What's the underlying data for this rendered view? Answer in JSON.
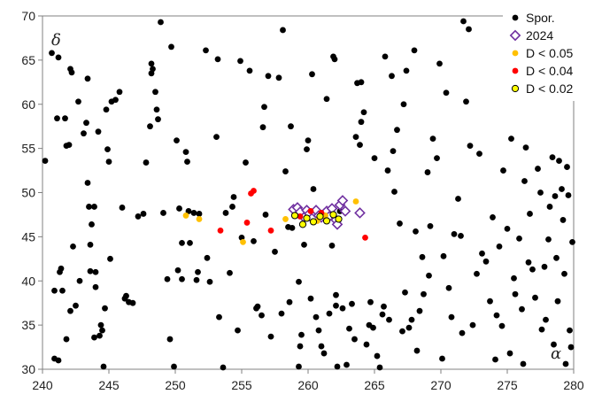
{
  "chart_data": {
    "type": "scatter",
    "xlabel": "α",
    "ylabel": "δ",
    "xlim": [
      240,
      280
    ],
    "ylim": [
      30,
      70
    ],
    "xticks": [
      240,
      245,
      250,
      255,
      260,
      265,
      270,
      275,
      280
    ],
    "yticks": [
      30,
      35,
      40,
      45,
      50,
      55,
      60,
      65,
      70
    ],
    "grid": false,
    "legend_position": "top-right",
    "series": [
      {
        "name": "Spor.",
        "color": "#000000",
        "marker": "filled-circle",
        "points": [
          [
            240.2,
            53.6
          ],
          [
            240.7,
            65.8
          ],
          [
            240.9,
            31.2
          ],
          [
            240.9,
            38.9
          ],
          [
            241.1,
            58.4
          ],
          [
            241.2,
            65.3
          ],
          [
            241.2,
            31.0
          ],
          [
            241.3,
            41.0
          ],
          [
            241.4,
            41.4
          ],
          [
            241.5,
            38.9
          ],
          [
            241.7,
            58.4
          ],
          [
            241.8,
            33.4
          ],
          [
            241.8,
            55.3
          ],
          [
            242.0,
            55.4
          ],
          [
            242.1,
            36.6
          ],
          [
            242.1,
            64.0
          ],
          [
            242.2,
            63.6
          ],
          [
            242.3,
            43.9
          ],
          [
            242.5,
            37.2
          ],
          [
            242.7,
            60.3
          ],
          [
            242.8,
            40.0
          ],
          [
            243.1,
            56.7
          ],
          [
            243.3,
            57.9
          ],
          [
            243.4,
            51.1
          ],
          [
            243.4,
            62.9
          ],
          [
            243.5,
            48.4
          ],
          [
            243.6,
            44.1
          ],
          [
            243.6,
            41.1
          ],
          [
            243.7,
            46.4
          ],
          [
            243.9,
            48.4
          ],
          [
            243.9,
            33.6
          ],
          [
            244.0,
            41.0
          ],
          [
            244.0,
            39.3
          ],
          [
            244.2,
            56.9
          ],
          [
            244.3,
            33.8
          ],
          [
            244.4,
            35.0
          ],
          [
            244.5,
            34.4
          ],
          [
            244.6,
            30.3
          ],
          [
            244.7,
            36.9
          ],
          [
            244.8,
            59.4
          ],
          [
            244.9,
            54.9
          ],
          [
            245.0,
            53.5
          ],
          [
            245.1,
            42.5
          ],
          [
            245.2,
            60.3
          ],
          [
            245.5,
            60.5
          ],
          [
            245.8,
            61.4
          ],
          [
            246.0,
            48.3
          ],
          [
            246.2,
            38.0
          ],
          [
            246.3,
            38.3
          ],
          [
            246.5,
            37.6
          ],
          [
            246.8,
            37.5
          ],
          [
            247.2,
            47.3
          ],
          [
            247.6,
            47.6
          ],
          [
            247.8,
            53.4
          ],
          [
            248.1,
            57.5
          ],
          [
            248.2,
            64.6
          ],
          [
            248.2,
            63.5
          ],
          [
            248.3,
            64.0
          ],
          [
            248.5,
            61.4
          ],
          [
            248.6,
            59.4
          ],
          [
            248.7,
            58.3
          ],
          [
            248.9,
            69.3
          ],
          [
            249.1,
            47.7
          ],
          [
            249.4,
            40.2
          ],
          [
            249.6,
            33.4
          ],
          [
            249.7,
            66.5
          ],
          [
            249.9,
            30.3
          ],
          [
            250.1,
            55.9
          ],
          [
            250.2,
            41.2
          ],
          [
            250.3,
            48.2
          ],
          [
            250.5,
            44.3
          ],
          [
            250.5,
            40.2
          ],
          [
            250.8,
            54.6
          ],
          [
            250.9,
            53.5
          ],
          [
            251.0,
            47.9
          ],
          [
            251.1,
            44.3
          ],
          [
            251.4,
            47.7
          ],
          [
            251.6,
            40.1
          ],
          [
            251.7,
            41.0
          ],
          [
            251.8,
            47.6
          ],
          [
            252.3,
            66.1
          ],
          [
            252.4,
            42.6
          ],
          [
            252.6,
            39.9
          ],
          [
            253.1,
            56.3
          ],
          [
            253.2,
            65.1
          ],
          [
            253.3,
            35.9
          ],
          [
            253.6,
            30.2
          ],
          [
            253.8,
            47.7
          ],
          [
            254.1,
            40.9
          ],
          [
            254.3,
            48.4
          ],
          [
            254.4,
            49.5
          ],
          [
            254.7,
            34.4
          ],
          [
            254.9,
            64.9
          ],
          [
            255.0,
            44.9
          ],
          [
            255.3,
            53.4
          ],
          [
            255.6,
            63.8
          ],
          [
            255.9,
            44.5
          ],
          [
            256.1,
            36.9
          ],
          [
            256.2,
            37.1
          ],
          [
            256.5,
            36.1
          ],
          [
            256.6,
            57.4
          ],
          [
            256.7,
            59.7
          ],
          [
            256.8,
            47.5
          ],
          [
            257.0,
            63.2
          ],
          [
            257.2,
            33.7
          ],
          [
            257.5,
            43.3
          ],
          [
            257.8,
            63.0
          ],
          [
            258.0,
            36.3
          ],
          [
            258.1,
            68.4
          ],
          [
            258.3,
            52.4
          ],
          [
            258.5,
            46.1
          ],
          [
            258.6,
            37.6
          ],
          [
            258.7,
            57.5
          ],
          [
            258.8,
            46.0
          ],
          [
            259.3,
            30.3
          ],
          [
            259.3,
            39.9
          ],
          [
            259.4,
            32.6
          ],
          [
            259.5,
            33.9
          ],
          [
            259.7,
            44.1
          ],
          [
            259.9,
            54.9
          ],
          [
            260.0,
            55.9
          ],
          [
            260.2,
            38.0
          ],
          [
            260.3,
            63.4
          ],
          [
            260.4,
            50.4
          ],
          [
            260.6,
            35.9
          ],
          [
            260.8,
            34.4
          ],
          [
            261.0,
            32.6
          ],
          [
            261.2,
            31.8
          ],
          [
            261.4,
            60.6
          ],
          [
            261.6,
            36.3
          ],
          [
            261.8,
            44.0
          ],
          [
            261.9,
            65.4
          ],
          [
            262.0,
            65.1
          ],
          [
            262.1,
            38.4
          ],
          [
            262.1,
            37.2
          ],
          [
            262.2,
            30.3
          ],
          [
            262.4,
            47.9
          ],
          [
            262.6,
            36.9
          ],
          [
            262.9,
            30.5
          ],
          [
            263.1,
            34.6
          ],
          [
            263.3,
            37.4
          ],
          [
            263.5,
            33.4
          ],
          [
            263.6,
            56.3
          ],
          [
            263.7,
            62.4
          ],
          [
            263.9,
            55.4
          ],
          [
            264.0,
            62.5
          ],
          [
            264.0,
            58.0
          ],
          [
            264.2,
            59.1
          ],
          [
            264.4,
            32.8
          ],
          [
            264.6,
            35.0
          ],
          [
            264.7,
            37.6
          ],
          [
            264.9,
            34.7
          ],
          [
            265.0,
            53.9
          ],
          [
            265.2,
            31.5
          ],
          [
            265.4,
            30.2
          ],
          [
            265.6,
            36.2
          ],
          [
            265.7,
            37.1
          ],
          [
            265.8,
            65.4
          ],
          [
            266.0,
            52.5
          ],
          [
            266.1,
            35.6
          ],
          [
            266.3,
            63.2
          ],
          [
            266.4,
            54.7
          ],
          [
            266.5,
            50.1
          ],
          [
            266.7,
            57.1
          ],
          [
            266.9,
            46.5
          ],
          [
            267.1,
            34.3
          ],
          [
            267.2,
            60.0
          ],
          [
            267.3,
            38.7
          ],
          [
            267.4,
            63.8
          ],
          [
            267.6,
            34.7
          ],
          [
            267.8,
            35.6
          ],
          [
            268.0,
            66.1
          ],
          [
            268.1,
            45.6
          ],
          [
            268.2,
            32.1
          ],
          [
            268.4,
            36.6
          ],
          [
            268.6,
            42.7
          ],
          [
            268.7,
            38.5
          ],
          [
            269.0,
            52.3
          ],
          [
            269.1,
            40.6
          ],
          [
            269.2,
            46.2
          ],
          [
            269.4,
            56.1
          ],
          [
            269.7,
            53.9
          ],
          [
            269.9,
            64.6
          ],
          [
            270.1,
            31.2
          ],
          [
            270.2,
            42.8
          ],
          [
            270.4,
            61.3
          ],
          [
            270.6,
            39.2
          ],
          [
            270.8,
            35.9
          ],
          [
            271.0,
            45.3
          ],
          [
            271.3,
            49.3
          ],
          [
            271.5,
            45.1
          ],
          [
            271.6,
            34.1
          ],
          [
            271.7,
            69.4
          ],
          [
            271.9,
            60.3
          ],
          [
            272.1,
            68.5
          ],
          [
            272.2,
            55.3
          ],
          [
            272.4,
            35.0
          ],
          [
            272.7,
            40.8
          ],
          [
            272.9,
            54.4
          ],
          [
            273.1,
            43.1
          ],
          [
            273.4,
            42.2
          ],
          [
            273.7,
            37.7
          ],
          [
            273.9,
            47.2
          ],
          [
            274.1,
            31.1
          ],
          [
            274.2,
            36.1
          ],
          [
            274.4,
            43.9
          ],
          [
            274.6,
            34.9
          ],
          [
            274.7,
            52.5
          ],
          [
            275.0,
            45.9
          ],
          [
            275.2,
            31.8
          ],
          [
            275.3,
            56.1
          ],
          [
            275.5,
            40.3
          ],
          [
            275.6,
            38.5
          ],
          [
            275.9,
            44.8
          ],
          [
            276.1,
            36.8
          ],
          [
            276.2,
            30.6
          ],
          [
            276.3,
            51.3
          ],
          [
            276.4,
            55.1
          ],
          [
            276.6,
            42.1
          ],
          [
            276.7,
            47.6
          ],
          [
            276.9,
            41.3
          ],
          [
            277.1,
            38.1
          ],
          [
            277.3,
            52.7
          ],
          [
            277.5,
            50.0
          ],
          [
            277.6,
            34.5
          ],
          [
            277.8,
            41.6
          ],
          [
            277.9,
            35.6
          ],
          [
            278.1,
            44.7
          ],
          [
            278.2,
            48.4
          ],
          [
            278.4,
            54.0
          ],
          [
            278.5,
            32.8
          ],
          [
            278.6,
            49.6
          ],
          [
            278.7,
            42.6
          ],
          [
            278.8,
            37.7
          ],
          [
            278.9,
            53.6
          ],
          [
            279.1,
            50.4
          ],
          [
            279.2,
            46.9
          ],
          [
            279.3,
            40.8
          ],
          [
            279.4,
            30.6
          ],
          [
            279.5,
            52.9
          ],
          [
            279.6,
            49.7
          ],
          [
            279.7,
            34.4
          ],
          [
            279.8,
            32.5
          ],
          [
            279.9,
            44.4
          ]
        ]
      },
      {
        "name": "2024",
        "color": "#7030a0",
        "marker": "open-diamond",
        "points": [
          [
            258.9,
            48.1
          ],
          [
            259.2,
            48.3
          ],
          [
            259.4,
            47.8
          ],
          [
            259.7,
            47.2
          ],
          [
            259.9,
            48.0
          ],
          [
            260.1,
            47.6
          ],
          [
            260.3,
            47.1
          ],
          [
            260.5,
            47.8
          ],
          [
            260.6,
            48.0
          ],
          [
            260.8,
            47.4
          ],
          [
            261.0,
            47.2
          ],
          [
            261.2,
            47.6
          ],
          [
            261.4,
            47.9
          ],
          [
            261.6,
            47.3
          ],
          [
            261.8,
            48.2
          ],
          [
            262.1,
            46.9
          ],
          [
            262.2,
            46.4
          ],
          [
            262.4,
            48.6
          ],
          [
            262.6,
            49.1
          ],
          [
            262.8,
            47.9
          ],
          [
            263.9,
            47.7
          ]
        ]
      },
      {
        "name": "D < 0.05",
        "color": "#ffc000",
        "marker": "filled-circle",
        "points": [
          [
            250.8,
            47.4
          ],
          [
            251.8,
            47.0
          ],
          [
            255.1,
            44.4
          ],
          [
            258.3,
            47.0
          ],
          [
            260.7,
            46.8
          ],
          [
            261.3,
            47.4
          ],
          [
            263.6,
            49.0
          ]
        ]
      },
      {
        "name": "D < 0.04",
        "color": "#ff0000",
        "marker": "filled-circle",
        "points": [
          [
            253.4,
            45.7
          ],
          [
            255.4,
            46.6
          ],
          [
            255.7,
            49.9
          ],
          [
            255.9,
            50.2
          ],
          [
            257.2,
            45.7
          ],
          [
            259.4,
            47.3
          ],
          [
            260.2,
            47.9
          ],
          [
            261.0,
            47.7
          ],
          [
            264.3,
            44.9
          ]
        ]
      },
      {
        "name": "D < 0.02",
        "color": "#ffff00",
        "marker": "filled-circle-outlined",
        "points": [
          [
            259.0,
            47.4
          ],
          [
            259.6,
            46.4
          ],
          [
            259.9,
            47.1
          ],
          [
            260.4,
            46.7
          ],
          [
            260.9,
            47.3
          ],
          [
            261.4,
            46.8
          ],
          [
            261.9,
            47.5
          ],
          [
            262.3,
            47.0
          ]
        ]
      }
    ]
  }
}
